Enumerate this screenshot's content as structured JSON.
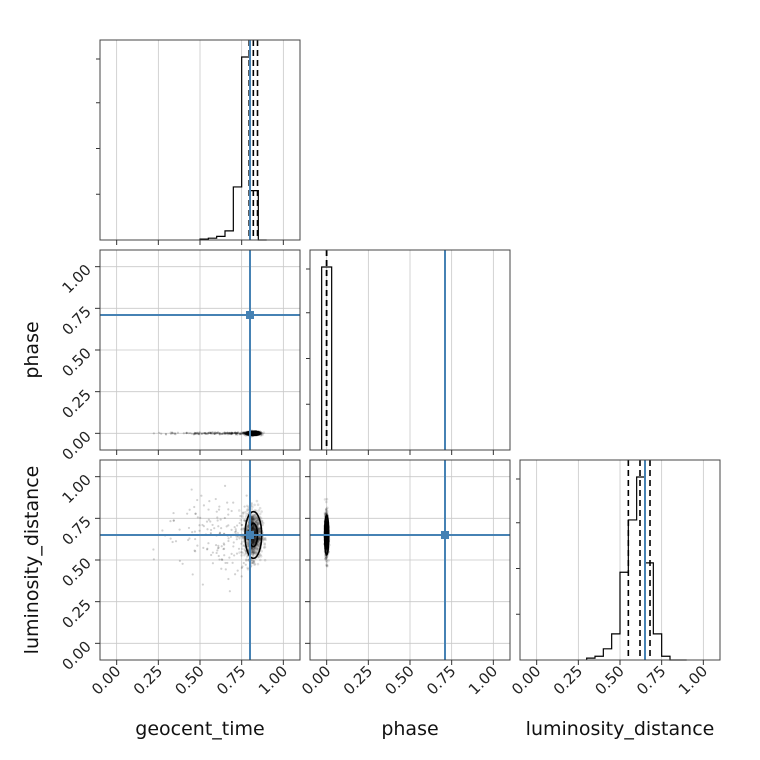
{
  "chart_data": {
    "type": "corner",
    "parameters": [
      "geocent_time",
      "phase",
      "luminosity_distance"
    ],
    "axis_range": [
      -0.1,
      1.1
    ],
    "ticks": [
      0.0,
      0.25,
      0.5,
      0.75,
      1.0
    ],
    "tick_labels": [
      "0.00",
      "0.25",
      "0.50",
      "0.75",
      "1.00"
    ],
    "truth_color": "#4682b4",
    "truths": {
      "geocent_time": 0.8,
      "phase": 0.71,
      "luminosity_distance": 0.65
    },
    "grid": true,
    "marginals": {
      "geocent_time": {
        "bin_edges": [
          0.5,
          0.55,
          0.6,
          0.65,
          0.7,
          0.75,
          0.8,
          0.85,
          0.9
        ],
        "counts": [
          0.005,
          0.01,
          0.02,
          0.05,
          0.29,
          1.0,
          0.27,
          0.0
        ],
        "quantiles": [
          0.795,
          0.82,
          0.845
        ]
      },
      "phase": {
        "bin_edges": [
          -0.03,
          0.0,
          0.03
        ],
        "counts": [
          1.0,
          1.0
        ],
        "quantiles": [
          0.0,
          0.0,
          0.0
        ]
      },
      "luminosity_distance": {
        "bin_edges": [
          0.3,
          0.35,
          0.4,
          0.45,
          0.5,
          0.55,
          0.6,
          0.65,
          0.7,
          0.75,
          0.8,
          0.85,
          0.9
        ],
        "counts": [
          0.01,
          0.02,
          0.06,
          0.14,
          0.47,
          0.75,
          0.98,
          0.52,
          0.14,
          0.02,
          0.0,
          0.0
        ],
        "quantiles": [
          0.55,
          0.62,
          0.68
        ]
      }
    },
    "joint": {
      "geocent_time_vs_phase": {
        "center": [
          0.82,
          0.0
        ],
        "spread": [
          0.02,
          0.005
        ],
        "tail_x_range": [
          0.18,
          0.78
        ]
      },
      "geocent_time_vs_luminosity_distance": {
        "center": [
          0.82,
          0.65
        ],
        "spread": [
          0.025,
          0.07
        ],
        "tail_x_range": [
          0.18,
          0.78
        ]
      },
      "phase_vs_luminosity_distance": {
        "center": [
          0.0,
          0.65
        ],
        "spread": [
          0.005,
          0.06
        ]
      }
    }
  }
}
